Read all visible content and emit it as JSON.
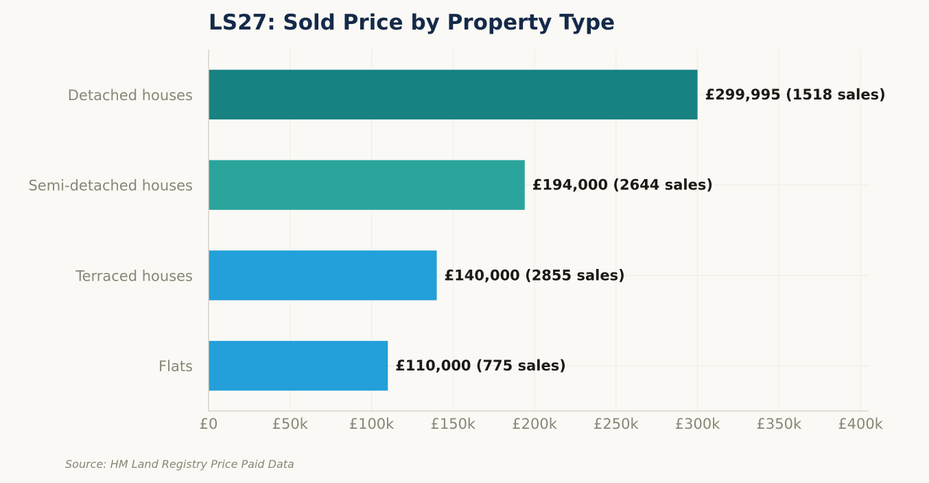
{
  "chart_data": {
    "type": "bar",
    "orientation": "horizontal",
    "title": "LS27: Sold Price by Property Type",
    "categories": [
      "Detached houses",
      "Semi-detached houses",
      "Terraced houses",
      "Flats"
    ],
    "values": [
      299995,
      194000,
      140000,
      110000
    ],
    "sales": [
      1518,
      2644,
      2855,
      775
    ],
    "data_labels": [
      "£299,995  (1518 sales)",
      "£194,000  (2644 sales)",
      "£140,000  (2855 sales)",
      "£110,000  (775 sales)"
    ],
    "bar_colors": [
      "#178281",
      "#2ba49b",
      "#239fd9",
      "#239fd9"
    ],
    "xlim": [
      0,
      405000
    ],
    "x_ticks": [
      0,
      50000,
      100000,
      150000,
      200000,
      250000,
      300000,
      350000,
      400000
    ],
    "x_tick_labels": [
      "£0",
      "£50k",
      "£100k",
      "£150k",
      "£200k",
      "£250k",
      "£300k",
      "£350k",
      "£400k"
    ],
    "grid": true,
    "xlabel": "",
    "ylabel": ""
  },
  "footer": {
    "source": "Source: HM Land Registry Price Paid Data"
  }
}
